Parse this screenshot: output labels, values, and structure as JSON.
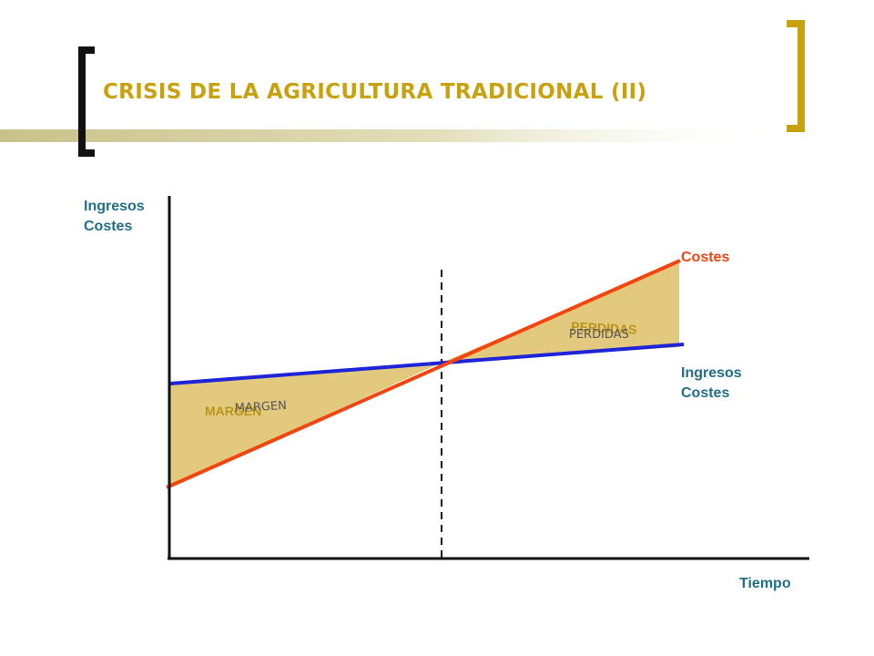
{
  "colors": {
    "accent": "#C9A10E",
    "title": "#C9A10E",
    "label": "#1F6F8B",
    "costs_line": "#F2450F",
    "income_line": "#1E24D8",
    "fill_area": "#E2C97D",
    "fill_label": "#B8951D",
    "axis": "#111111"
  },
  "slide": {
    "title": "CRISIS DE LA AGRICULTURA TRADICIONAL (II)"
  },
  "diagram": {
    "y_axis_label_line1": "Ingresos",
    "y_axis_label_line2": "Costes",
    "x_axis_label": "Tiempo",
    "costs_label": "Costes",
    "income_label_line1": "Ingresos",
    "income_label_line2": "Costes",
    "margin_label": "MARGEN",
    "margin_label_overlay": "MARGEN",
    "losses_label": "PERDIDAS",
    "losses_label_overlay": "PERDIDAS"
  }
}
